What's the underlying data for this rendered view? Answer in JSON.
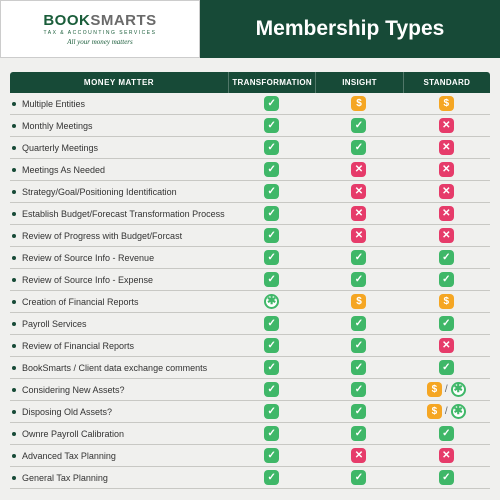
{
  "logo": {
    "main_a": "BOOK",
    "main_b": "SMARTS",
    "sub": "TAX & ACCOUNTING SERVICES",
    "tagline": "All your money matters"
  },
  "title": "Membership Types",
  "columns": {
    "feature": "MONEY MATTER",
    "t1": "TRANSFORMATION",
    "t2": "INSIGHT",
    "t3": "STANDARD"
  },
  "colors": {
    "brand_dark": "#174a37",
    "check": "#3fb768",
    "x": "#e63b6a",
    "dollar": "#f5a623"
  },
  "rows": [
    {
      "label": "Multiple Entities",
      "c": [
        "check",
        "dollar",
        "dollar"
      ]
    },
    {
      "label": "Monthly Meetings",
      "c": [
        "check",
        "check",
        "x"
      ]
    },
    {
      "label": "Quarterly Meetings",
      "c": [
        "check",
        "check",
        "x"
      ]
    },
    {
      "label": "Meetings As Needed",
      "c": [
        "check",
        "x",
        "x"
      ]
    },
    {
      "label": "Strategy/Goal/Positioning Identification",
      "c": [
        "check",
        "x",
        "x"
      ]
    },
    {
      "label": "Establish Budget/Forecast Transformation Process",
      "c": [
        "check",
        "x",
        "x"
      ]
    },
    {
      "label": "Review of Progress with Budget/Forcast",
      "c": [
        "check",
        "x",
        "x"
      ]
    },
    {
      "label": "Review of Source Info - Revenue",
      "c": [
        "check",
        "check",
        "check"
      ]
    },
    {
      "label": "Review of Source Info - Expense",
      "c": [
        "check",
        "check",
        "check"
      ]
    },
    {
      "label": "Creation of Financial Reports",
      "c": [
        "star",
        "dollar",
        "dollar"
      ]
    },
    {
      "label": "Payroll Services",
      "c": [
        "check",
        "check",
        "check"
      ]
    },
    {
      "label": "Review of Financial Reports",
      "c": [
        "check",
        "check",
        "x"
      ]
    },
    {
      "label": "BookSmarts / Client data exchange comments",
      "c": [
        "check",
        "check",
        "check"
      ]
    },
    {
      "label": "Considering New Assets?",
      "c": [
        "check",
        "check",
        "dollar/star"
      ]
    },
    {
      "label": "Disposing Old Assets?",
      "c": [
        "check",
        "check",
        "dollar/star"
      ]
    },
    {
      "label": "Ownre Payroll Calibration",
      "c": [
        "check",
        "check",
        "check"
      ]
    },
    {
      "label": "Advanced Tax Planning",
      "c": [
        "check",
        "x",
        "x"
      ]
    },
    {
      "label": "General Tax Planning",
      "c": [
        "check",
        "check",
        "check"
      ]
    }
  ]
}
